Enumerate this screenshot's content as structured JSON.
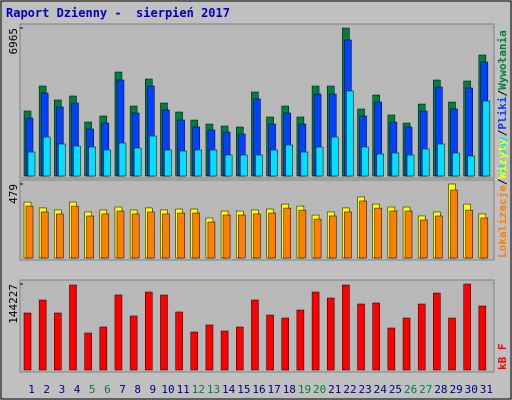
{
  "chart_data": {
    "type": "bar",
    "title": "Raport Dzienny -  sierpień 2017",
    "categories": [
      "1",
      "2",
      "3",
      "4",
      "5",
      "6",
      "7",
      "8",
      "9",
      "10",
      "11",
      "12",
      "13",
      "14",
      "15",
      "16",
      "17",
      "18",
      "19",
      "20",
      "21",
      "22",
      "23",
      "24",
      "25",
      "26",
      "27",
      "28",
      "29",
      "30",
      "31"
    ],
    "category_colors": [
      "#000080",
      "#000080",
      "#000080",
      "#000080",
      "#008040",
      "#008040",
      "#000080",
      "#000080",
      "#000080",
      "#000080",
      "#000080",
      "#008040",
      "#008040",
      "#000080",
      "#000080",
      "#000080",
      "#000080",
      "#000080",
      "#008040",
      "#008040",
      "#000080",
      "#000080",
      "#000080",
      "#000080",
      "#000080",
      "#008040",
      "#008040",
      "#000080",
      "#000080",
      "#000080",
      "#000080"
    ],
    "legend_separator": "/",
    "panels": [
      {
        "ylim": [
          0,
          6965
        ],
        "yticks": [
          6965
        ],
        "series": [
          {
            "name": "Wywołania",
            "color": "#008040",
            "values": [
              3059,
              4235,
              3577,
              3765,
              2541,
              2824,
              4894,
              3294,
              4565,
              3435,
              3012,
              2635,
              2447,
              2353,
              2306,
              3953,
              2777,
              3294,
              2777,
              4235,
              4235,
              6965,
              3153,
              3812,
              2871,
              2494,
              3388,
              4518,
              3482,
              4471,
              5694
            ]
          },
          {
            "name": "Pliki",
            "color": "#0040ff",
            "values": [
              2729,
              3906,
              3247,
              3435,
              2212,
              2494,
              4518,
              2965,
              4235,
              3106,
              2635,
              2306,
              2165,
              2071,
              1976,
              3624,
              2447,
              2965,
              2447,
              3859,
              3859,
              6400,
              2824,
              3482,
              2541,
              2306,
              3059,
              4188,
              3153,
              4141,
              5365
            ]
          },
          {
            "name": "Strony",
            "color": "#00e0ff",
            "values": [
              1129,
              1835,
              1506,
              1412,
              1365,
              1224,
              1553,
              1318,
              1882,
              1224,
              1176,
              1224,
              1224,
              988,
              988,
              988,
              1224,
              1459,
              1129,
              1365,
              1835,
              4000,
              1365,
              1035,
              1082,
              988,
              1271,
              1506,
              1082,
              941,
              3529
            ]
          }
        ]
      },
      {
        "ylim": [
          0,
          479
        ],
        "yticks": [
          479
        ],
        "series": [
          {
            "name": "Wizyty",
            "color": "#ffff00",
            "values": [
              362,
              324,
              311,
              362,
              298,
              311,
              330,
              311,
              324,
              311,
              317,
              317,
              259,
              304,
              304,
              311,
              317,
              349,
              336,
              278,
              298,
              324,
              395,
              349,
              330,
              330,
              272,
              298,
              479,
              349,
              285
            ]
          },
          {
            "name": "Lokalizacje",
            "color": "#ff8000",
            "values": [
              336,
              298,
              285,
              336,
              272,
              285,
              304,
              285,
              298,
              285,
              291,
              291,
              233,
              278,
              278,
              285,
              291,
              323,
              310,
              252,
              272,
              298,
              369,
              323,
              304,
              304,
              246,
              272,
              440,
              310,
              259
            ]
          }
        ]
      },
      {
        "ylim": [
          0,
          144227
        ],
        "yticks": [
          144227
        ],
        "series": [
          {
            "name": "kB F",
            "color": "#ff0000",
            "values": [
              95600,
              117400,
              95600,
              142500,
              62000,
              72100,
              125800,
              90600,
              130800,
              125800,
              97300,
              63700,
              75500,
              65400,
              72100,
              117400,
              92200,
              87200,
              100600,
              130800,
              120700,
              142500,
              110700,
              112400,
              70400,
              87200,
              110700,
              129100,
              87200,
              144227,
              107300
            ]
          }
        ]
      }
    ]
  }
}
